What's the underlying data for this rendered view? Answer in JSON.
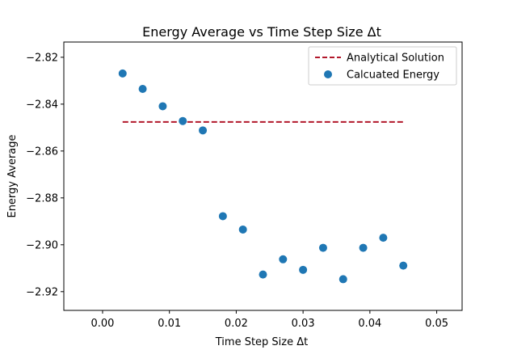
{
  "chart_data": {
    "type": "scatter",
    "title": "Energy Average vs Time Step Size Δt",
    "xlabel": "Time Step Size Δt",
    "ylabel": "Energy Average",
    "xlim": [
      -0.0058,
      0.0538
    ],
    "ylim": [
      -2.928,
      -2.8135
    ],
    "xticks": [
      0.0,
      0.01,
      0.02,
      0.03,
      0.04,
      0.05
    ],
    "xtick_labels": [
      "0.00",
      "0.01",
      "0.02",
      "0.03",
      "0.04",
      "0.05"
    ],
    "yticks": [
      -2.82,
      -2.84,
      -2.86,
      -2.88,
      -2.9,
      -2.92
    ],
    "ytick_labels": [
      "−2.82",
      "−2.84",
      "−2.86",
      "−2.88",
      "−2.90",
      "−2.92"
    ],
    "grid": false,
    "legend_position": "upper right",
    "series": [
      {
        "name": "Analytical Solution",
        "kind": "line",
        "style": "dashed",
        "color": "#b2182b",
        "x": [
          0.003,
          0.045
        ],
        "y": [
          -2.8476,
          -2.8476
        ]
      },
      {
        "name": "Calcuated Energy",
        "kind": "scatter",
        "color": "#1f77b4",
        "x": [
          0.003,
          0.006,
          0.009,
          0.012,
          0.015,
          0.018,
          0.021,
          0.024,
          0.027,
          0.03,
          0.033,
          0.036,
          0.039,
          0.042,
          0.045
        ],
        "y": [
          -2.8269,
          -2.8335,
          -2.8409,
          -2.8472,
          -2.8512,
          -2.8878,
          -2.8935,
          -2.9127,
          -2.9062,
          -2.9107,
          -2.9013,
          -2.9147,
          -2.9013,
          -2.897,
          -2.9089
        ]
      }
    ]
  }
}
